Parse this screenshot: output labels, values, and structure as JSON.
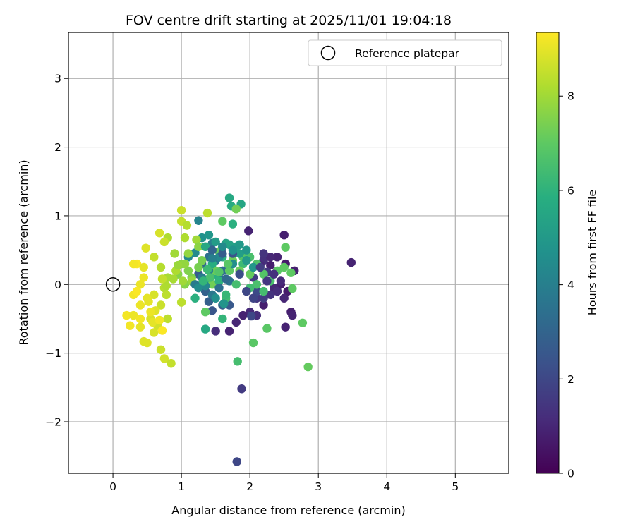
{
  "chart_data": {
    "type": "scatter",
    "title": "FOV centre drift starting at 2025/11/01 19:04:18",
    "xlabel": "Angular distance from reference (arcmin)",
    "ylabel": "Rotation from reference (arcmin)",
    "xlim": [
      -0.65,
      5.78
    ],
    "ylim": [
      -2.75,
      3.67
    ],
    "xticks": [
      0,
      1,
      2,
      3,
      4,
      5
    ],
    "yticks": [
      -2,
      -1,
      0,
      1,
      2,
      3
    ],
    "grid": true,
    "legend": {
      "placement": "top-right",
      "entries": [
        "Reference platepar"
      ]
    },
    "reference_point": {
      "x": 0,
      "y": 0
    },
    "colorbar": {
      "label": "Hours from first FF file",
      "min": 0,
      "max": 9.35,
      "ticks": [
        0,
        2,
        4,
        6,
        8
      ],
      "colormap": "viridis"
    },
    "points": [
      [
        3.48,
        0.32,
        0.9
      ],
      [
        2.5,
        0.72,
        0.8
      ],
      [
        2.52,
        0.3,
        0.7
      ],
      [
        2.65,
        0.2,
        0.8
      ],
      [
        2.4,
        0.4,
        0.9
      ],
      [
        2.3,
        0.28,
        0.8
      ],
      [
        2.55,
        -0.1,
        0.7
      ],
      [
        2.5,
        -0.2,
        1.0
      ],
      [
        2.45,
        0.0,
        0.8
      ],
      [
        2.6,
        -0.4,
        0.8
      ],
      [
        2.62,
        -0.45,
        0.9
      ],
      [
        2.52,
        -0.62,
        0.9
      ],
      [
        2.35,
        -0.05,
        1.0
      ],
      [
        2.2,
        -0.3,
        0.8
      ],
      [
        2.1,
        -0.45,
        1.2
      ],
      [
        2.0,
        -0.4,
        1.1
      ],
      [
        1.9,
        -0.45,
        0.9
      ],
      [
        1.8,
        -0.55,
        1.0
      ],
      [
        1.7,
        -0.68,
        0.9
      ],
      [
        1.5,
        -0.68,
        1.2
      ],
      [
        1.98,
        0.78,
        0.9
      ],
      [
        2.2,
        0.35,
        1.3
      ],
      [
        2.15,
        0.28,
        1.1
      ],
      [
        2.25,
        0.18,
        1.5
      ],
      [
        2.3,
        -0.15,
        1.4
      ],
      [
        2.1,
        -0.2,
        1.5
      ],
      [
        2.05,
        0.1,
        1.6
      ],
      [
        1.95,
        -0.1,
        1.8
      ],
      [
        1.88,
        -1.52,
        1.6
      ],
      [
        1.81,
        -2.58,
        2.0
      ],
      [
        2.02,
        -0.46,
        2.0
      ],
      [
        2.1,
        -0.1,
        2.1
      ],
      [
        2.2,
        -0.2,
        1.7
      ],
      [
        1.7,
        -0.3,
        2.6
      ],
      [
        1.6,
        -0.3,
        2.8
      ],
      [
        1.45,
        -0.38,
        2.5
      ],
      [
        1.4,
        -0.25,
        2.8
      ],
      [
        1.35,
        -0.1,
        2.9
      ],
      [
        1.25,
        0.15,
        2.7
      ],
      [
        1.3,
        0.3,
        3.1
      ],
      [
        1.4,
        0.4,
        3.4
      ],
      [
        1.5,
        0.35,
        3.6
      ],
      [
        1.6,
        0.2,
        3.3
      ],
      [
        1.7,
        0.05,
        3.5
      ],
      [
        1.55,
        0.1,
        3.8
      ],
      [
        1.45,
        0.6,
        4.0
      ],
      [
        1.25,
        0.93,
        4.2
      ],
      [
        1.1,
        0.4,
        4.4
      ],
      [
        1.2,
        0.46,
        4.5
      ],
      [
        1.3,
        0.68,
        4.7
      ],
      [
        1.4,
        0.72,
        4.9
      ],
      [
        1.5,
        0.62,
        5.1
      ],
      [
        1.6,
        0.55,
        5.0
      ],
      [
        1.7,
        0.58,
        5.3
      ],
      [
        1.8,
        0.55,
        5.2
      ],
      [
        1.7,
        1.26,
        5.6
      ],
      [
        1.73,
        1.14,
        5.7
      ],
      [
        1.87,
        1.17,
        5.5
      ],
      [
        1.75,
        0.88,
        5.9
      ],
      [
        1.6,
        0.4,
        5.8
      ],
      [
        1.5,
        0.15,
        5.9
      ],
      [
        1.4,
        0.08,
        6.0
      ],
      [
        1.3,
        0.0,
        6.2
      ],
      [
        1.2,
        -0.2,
        5.9
      ],
      [
        1.35,
        -0.65,
        5.6
      ],
      [
        1.6,
        -0.5,
        6.1
      ],
      [
        1.65,
        -0.2,
        6.4
      ],
      [
        1.8,
        0.0,
        6.5
      ],
      [
        1.9,
        0.3,
        6.3
      ],
      [
        2.0,
        0.4,
        6.6
      ],
      [
        2.1,
        0.3,
        6.7
      ],
      [
        2.2,
        0.15,
        6.8
      ],
      [
        2.3,
        0.05,
        6.6
      ],
      [
        2.4,
        0.2,
        6.9
      ],
      [
        2.5,
        0.25,
        7.0
      ],
      [
        2.52,
        0.54,
        7.0
      ],
      [
        2.6,
        0.17,
        7.0
      ],
      [
        2.62,
        -0.06,
        7.0
      ],
      [
        2.77,
        -0.56,
        7.0
      ],
      [
        2.85,
        -1.2,
        7.1
      ],
      [
        2.05,
        -0.85,
        6.9
      ],
      [
        1.82,
        -1.12,
        6.5
      ],
      [
        2.25,
        -0.64,
        6.9
      ],
      [
        2.0,
        0.15,
        7.1
      ],
      [
        1.85,
        0.2,
        7.2
      ],
      [
        1.75,
        0.35,
        7.2
      ],
      [
        1.55,
        0.48,
        7.1
      ],
      [
        1.6,
        0.92,
        7.0
      ],
      [
        1.8,
        1.1,
        7.3
      ],
      [
        1.45,
        0.0,
        7.3
      ],
      [
        1.35,
        -0.4,
        7.0
      ],
      [
        1.25,
        0.25,
        7.4
      ],
      [
        1.15,
        0.1,
        7.5
      ],
      [
        1.05,
        0.0,
        7.6
      ],
      [
        0.95,
        0.15,
        7.6
      ],
      [
        1.0,
        0.3,
        7.7
      ],
      [
        1.1,
        0.45,
        7.8
      ],
      [
        0.9,
        0.45,
        8.0
      ],
      [
        0.8,
        0.68,
        8.2
      ],
      [
        1.05,
        0.68,
        8.2
      ],
      [
        1.22,
        0.65,
        8.0
      ],
      [
        1.38,
        1.04,
        8.4
      ],
      [
        1.0,
        1.08,
        8.6
      ],
      [
        1.0,
        0.92,
        8.5
      ],
      [
        1.08,
        0.86,
        8.3
      ],
      [
        0.75,
        0.62,
        8.6
      ],
      [
        0.68,
        0.75,
        8.8
      ],
      [
        0.6,
        0.4,
        8.5
      ],
      [
        0.7,
        0.25,
        8.3
      ],
      [
        0.8,
        0.1,
        8.1
      ],
      [
        0.75,
        -0.05,
        8.3
      ],
      [
        0.78,
        -0.15,
        8.4
      ],
      [
        1.0,
        -0.26,
        8.4
      ],
      [
        0.6,
        -0.15,
        8.8
      ],
      [
        0.5,
        -0.2,
        9.0
      ],
      [
        0.4,
        -0.3,
        9.1
      ],
      [
        0.3,
        -0.15,
        9.2
      ],
      [
        0.2,
        -0.45,
        9.2
      ],
      [
        0.25,
        -0.6,
        9.2
      ],
      [
        0.3,
        -0.45,
        9.1
      ],
      [
        0.4,
        -0.62,
        9.0
      ],
      [
        0.5,
        -0.85,
        8.9
      ],
      [
        0.45,
        -0.83,
        8.9
      ],
      [
        0.55,
        -0.5,
        8.8
      ],
      [
        0.6,
        -0.7,
        8.8
      ],
      [
        0.65,
        -0.6,
        8.7
      ],
      [
        0.7,
        -0.95,
        8.6
      ],
      [
        0.75,
        -1.08,
        8.7
      ],
      [
        0.85,
        -1.15,
        8.5
      ],
      [
        0.8,
        -0.5,
        8.4
      ],
      [
        0.7,
        -0.3,
        8.6
      ],
      [
        0.62,
        -0.38,
        8.9
      ],
      [
        0.52,
        -0.25,
        9.0
      ],
      [
        0.45,
        0.1,
        9.1
      ],
      [
        0.4,
        0.0,
        9.1
      ],
      [
        0.35,
        0.3,
        9.3
      ],
      [
        0.3,
        0.3,
        9.2
      ],
      [
        0.45,
        0.25,
        9.0
      ],
      [
        0.48,
        0.53,
        8.9
      ],
      [
        0.55,
        -0.4,
        9.1
      ],
      [
        0.58,
        -0.55,
        9.0
      ],
      [
        0.68,
        -0.52,
        9.2
      ],
      [
        0.72,
        -0.67,
        9.3
      ],
      [
        0.4,
        -0.5,
        9.2
      ],
      [
        0.35,
        -0.1,
        9.3
      ],
      [
        0.92,
        0.2,
        8.2
      ],
      [
        1.02,
        0.05,
        8.0
      ],
      [
        1.15,
        0.05,
        7.9
      ],
      [
        1.25,
        0.55,
        7.7
      ],
      [
        1.1,
        0.2,
        7.5
      ],
      [
        1.3,
        0.35,
        7.4
      ],
      [
        1.5,
        0.2,
        7.2
      ],
      [
        1.7,
        0.2,
        7.0
      ],
      [
        1.9,
        0.4,
        6.8
      ],
      [
        2.1,
        0.0,
        6.6
      ],
      [
        2.2,
        -0.1,
        6.5
      ],
      [
        2.0,
        -0.05,
        6.4
      ],
      [
        1.65,
        -0.15,
        6.2
      ],
      [
        1.55,
        0.05,
        6.0
      ],
      [
        1.45,
        0.3,
        5.8
      ],
      [
        1.35,
        0.55,
        5.6
      ],
      [
        1.65,
        0.6,
        5.4
      ],
      [
        1.85,
        0.45,
        5.2
      ],
      [
        1.95,
        0.35,
        5.0
      ],
      [
        2.05,
        0.25,
        4.9
      ],
      [
        1.75,
        0.3,
        4.6
      ],
      [
        1.55,
        0.4,
        4.3
      ],
      [
        1.4,
        0.2,
        4.1
      ],
      [
        1.3,
        0.1,
        3.9
      ],
      [
        1.45,
        -0.15,
        3.7
      ],
      [
        1.55,
        -0.05,
        3.4
      ],
      [
        1.65,
        0.08,
        3.2
      ],
      [
        1.45,
        0.5,
        3.0
      ],
      [
        1.6,
        0.45,
        2.7
      ],
      [
        1.75,
        0.45,
        2.4
      ],
      [
        1.85,
        0.15,
        2.2
      ],
      [
        1.95,
        -0.1,
        2.0
      ],
      [
        2.05,
        -0.2,
        1.9
      ],
      [
        2.15,
        0.25,
        1.7
      ],
      [
        2.25,
        0.05,
        1.5
      ],
      [
        2.35,
        0.15,
        1.3
      ],
      [
        2.4,
        -0.1,
        1.2
      ],
      [
        2.45,
        0.05,
        1.1
      ],
      [
        2.3,
        0.4,
        1.0
      ],
      [
        2.2,
        0.45,
        1.4
      ],
      [
        1.2,
        0.0,
        3.8
      ],
      [
        1.35,
        -0.02,
        4.3
      ],
      [
        1.5,
        -0.2,
        4.6
      ],
      [
        1.62,
        -0.28,
        4.8
      ],
      [
        1.25,
        -0.05,
        4.5
      ],
      [
        1.05,
        0.3,
        7.8
      ],
      [
        0.95,
        0.28,
        7.9
      ],
      [
        0.88,
        0.08,
        8.1
      ],
      [
        0.78,
        -0.02,
        8.2
      ],
      [
        0.72,
        0.08,
        8.5
      ],
      [
        1.45,
        0.38,
        4.0
      ],
      [
        1.6,
        0.55,
        4.4
      ],
      [
        1.75,
        0.5,
        4.7
      ],
      [
        1.85,
        0.58,
        5.0
      ],
      [
        1.95,
        0.5,
        4.9
      ],
      [
        1.42,
        0.1,
        6.6
      ],
      [
        1.55,
        0.18,
        6.8
      ],
      [
        1.68,
        0.3,
        6.9
      ],
      [
        1.38,
        0.22,
        6.3
      ],
      [
        1.32,
        0.05,
        6.1
      ]
    ]
  }
}
